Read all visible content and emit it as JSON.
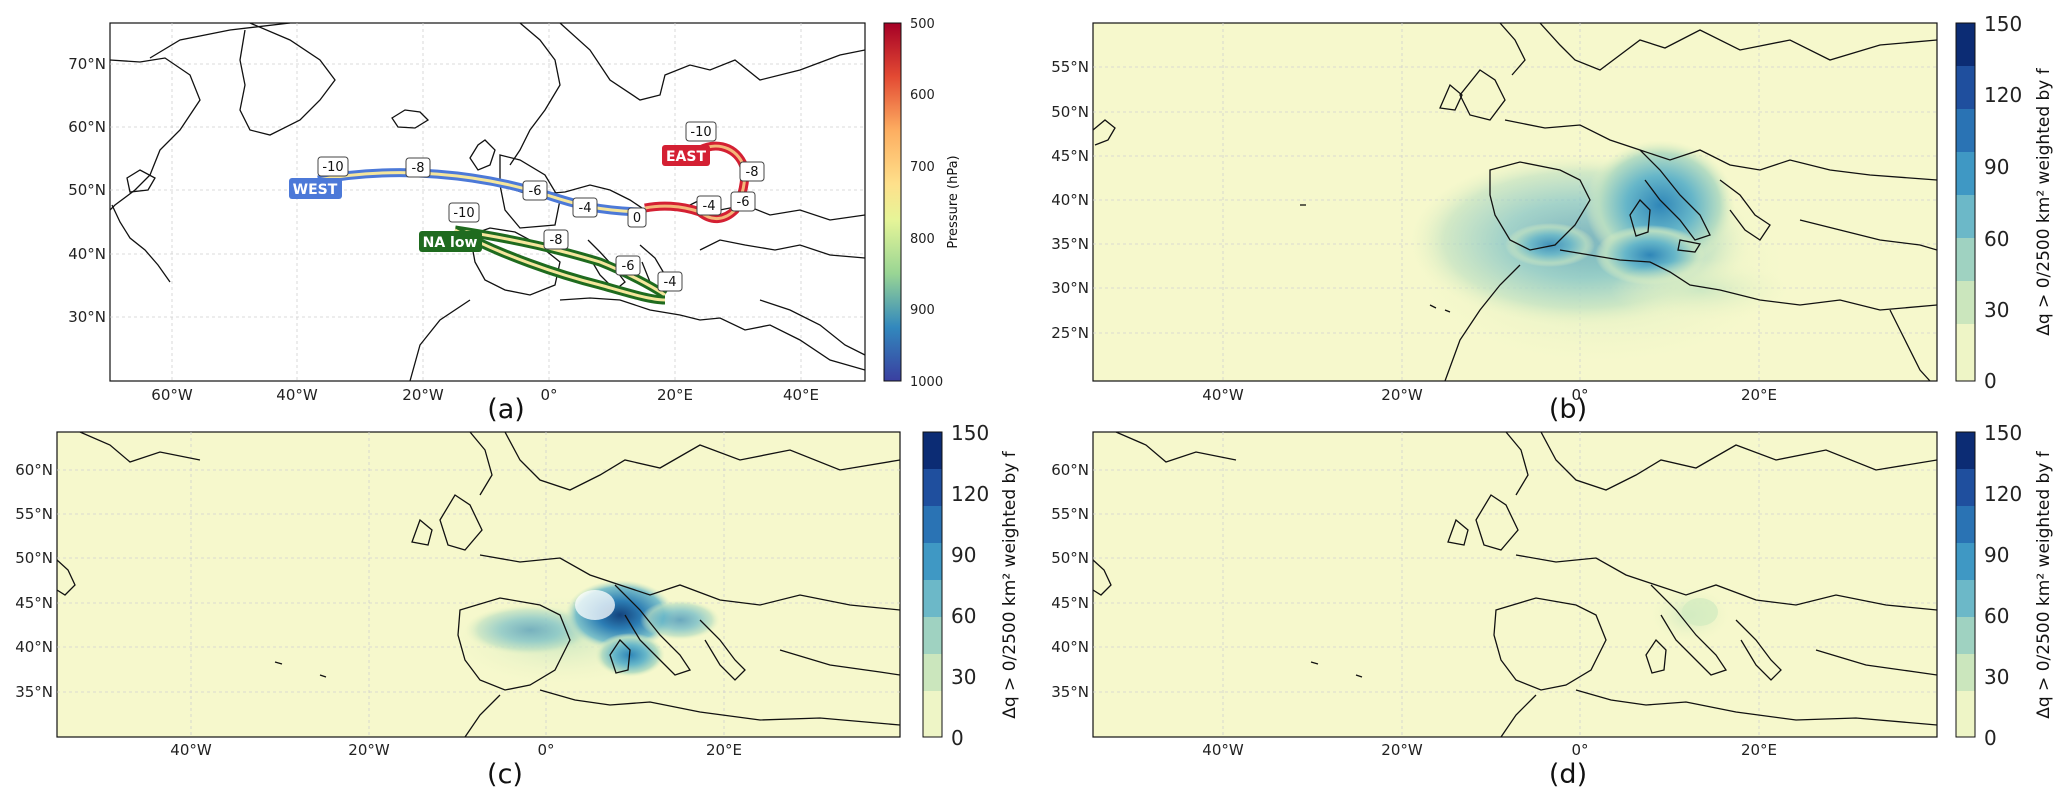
{
  "colors": {
    "background_map": "#f6f8cc",
    "land_fill_a": "#ffffff",
    "west_route": "#4c79d8",
    "east_route": "#d42033",
    "na_low_route": "#1f6b1f",
    "route_core": "#f7e7a0"
  },
  "panels": {
    "a": {
      "label": "(a)",
      "lat_ticks": [
        "70°N",
        "60°N",
        "50°N",
        "40°N",
        "30°N"
      ],
      "lon_ticks": [
        "60°W",
        "40°W",
        "20°W",
        "0°",
        "20°E",
        "40°E"
      ],
      "colorbar": {
        "title": "Pressure (hPa)",
        "ticks": [
          "500",
          "600",
          "700",
          "800",
          "900",
          "1000"
        ],
        "colormap": "RdYlBu (reversed, high pressure blue)"
      },
      "routes": [
        {
          "name": "WEST",
          "color": "#4c79d8",
          "time_labels": [
            "-10",
            "-8",
            "-6",
            "-4",
            "0"
          ]
        },
        {
          "name": "EAST",
          "color": "#d42033",
          "time_labels": [
            "-10",
            "-8",
            "-6",
            "-4"
          ]
        },
        {
          "name": "NA low",
          "color": "#1f6b1f",
          "time_labels": [
            "-10",
            "-8",
            "-6",
            "-4"
          ]
        }
      ]
    },
    "b": {
      "label": "(b)",
      "lat_ticks": [
        "55°N",
        "50°N",
        "45°N",
        "40°N",
        "35°N",
        "30°N",
        "25°N"
      ],
      "lon_ticks": [
        "40°W",
        "20°W",
        "0°",
        "20°E"
      ],
      "colorbar": {
        "title": "Δq > 0/2500 km² weighted by f",
        "ticks": [
          "150",
          "120",
          "90",
          "60",
          "30",
          "0"
        ]
      }
    },
    "c": {
      "label": "(c)",
      "lat_ticks": [
        "60°N",
        "55°N",
        "50°N",
        "45°N",
        "40°N",
        "35°N"
      ],
      "lon_ticks": [
        "40°W",
        "20°W",
        "0°",
        "20°E"
      ],
      "colorbar": {
        "title": "Δq > 0/2500 km² weighted by f",
        "ticks": [
          "150",
          "120",
          "90",
          "60",
          "30",
          "0"
        ]
      }
    },
    "d": {
      "label": "(d)",
      "lat_ticks": [
        "60°N",
        "55°N",
        "50°N",
        "45°N",
        "40°N",
        "35°N"
      ],
      "lon_ticks": [
        "40°W",
        "20°W",
        "0°",
        "20°E"
      ],
      "colorbar": {
        "title": "Δq > 0/2500 km² weighted by f",
        "ticks": [
          "150",
          "120",
          "90",
          "60",
          "30",
          "0"
        ]
      }
    }
  }
}
